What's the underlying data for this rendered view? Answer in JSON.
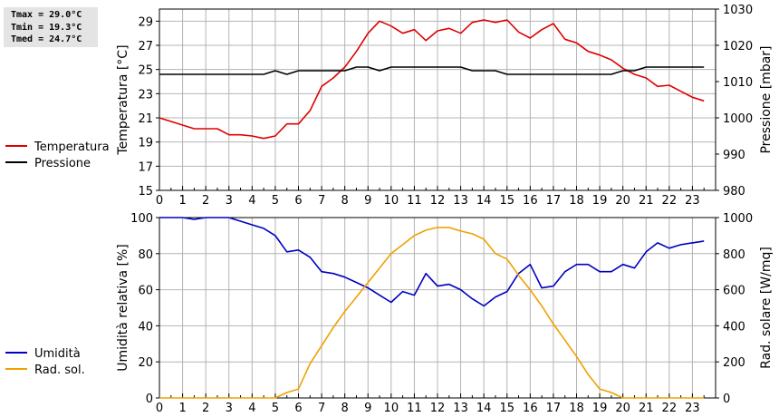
{
  "stats": {
    "tmax": "Tmax = 29.0°C",
    "tmin": "Tmin = 19.3°C",
    "tmed": "Tmed = 24.7°C"
  },
  "chart_data": [
    {
      "type": "line",
      "x": [
        0,
        0.5,
        1,
        1.5,
        2,
        2.5,
        3,
        3.5,
        4,
        4.5,
        5,
        5.5,
        6,
        6.5,
        7,
        7.5,
        8,
        8.5,
        9,
        9.5,
        10,
        10.5,
        11,
        11.5,
        12,
        12.5,
        13,
        13.5,
        14,
        14.5,
        15,
        15.5,
        16,
        16.5,
        17,
        17.5,
        18,
        18.5,
        19,
        19.5,
        20,
        20.5,
        21,
        21.5,
        22,
        22.5,
        23,
        23.5
      ],
      "xlim": [
        0,
        24
      ],
      "xticks": [
        "0",
        "1",
        "2",
        "3",
        "4",
        "5",
        "6",
        "7",
        "8",
        "9",
        "10",
        "11",
        "12",
        "13",
        "14",
        "15",
        "16",
        "17",
        "18",
        "19",
        "20",
        "21",
        "22",
        "23"
      ],
      "ylabel": "Temperatura [°C]",
      "ylim": [
        15,
        30
      ],
      "yticks": [
        "15",
        "17",
        "19",
        "21",
        "23",
        "25",
        "27",
        "29"
      ],
      "y2label": "Pressione [mbar]",
      "y2lim": [
        980,
        1030
      ],
      "y2ticks": [
        "980",
        "990",
        "1000",
        "1010",
        "1020",
        "1030"
      ],
      "grid": true,
      "legend_position": "left",
      "series": [
        {
          "name": "Temperatura",
          "axis": "left",
          "color": "#e00000",
          "values": [
            21.0,
            20.7,
            20.4,
            20.1,
            20.1,
            20.1,
            19.6,
            19.6,
            19.5,
            19.3,
            19.5,
            20.5,
            20.5,
            21.6,
            23.6,
            24.3,
            25.2,
            26.5,
            28.0,
            29.0,
            28.6,
            28.0,
            28.3,
            27.4,
            28.2,
            28.4,
            28.0,
            28.9,
            29.1,
            28.9,
            29.1,
            28.1,
            27.6,
            28.3,
            28.8,
            27.5,
            27.2,
            26.5,
            26.2,
            25.8,
            25.1,
            24.6,
            24.3,
            23.6,
            23.7,
            23.2,
            22.7,
            22.4
          ]
        },
        {
          "name": "Pressione",
          "axis": "right",
          "color": "#000000",
          "values": [
            1012,
            1012,
            1012,
            1012,
            1012,
            1012,
            1012,
            1012,
            1012,
            1012,
            1013,
            1012,
            1013,
            1013,
            1013,
            1013,
            1013,
            1014,
            1014,
            1013,
            1014,
            1014,
            1014,
            1014,
            1014,
            1014,
            1014,
            1013,
            1013,
            1013,
            1012,
            1012,
            1012,
            1012,
            1012,
            1012,
            1012,
            1012,
            1012,
            1012,
            1013,
            1013,
            1014,
            1014,
            1014,
            1014,
            1014,
            1014
          ]
        }
      ]
    },
    {
      "type": "line",
      "x": [
        0,
        0.5,
        1,
        1.5,
        2,
        2.5,
        3,
        3.5,
        4,
        4.5,
        5,
        5.5,
        6,
        6.5,
        7,
        7.5,
        8,
        8.5,
        9,
        9.5,
        10,
        10.5,
        11,
        11.5,
        12,
        12.5,
        13,
        13.5,
        14,
        14.5,
        15,
        15.5,
        16,
        16.5,
        17,
        17.5,
        18,
        18.5,
        19,
        19.5,
        20,
        20.5,
        21,
        21.5,
        22,
        22.5,
        23,
        23.5
      ],
      "xlim": [
        0,
        24
      ],
      "xticks": [
        "0",
        "1",
        "2",
        "3",
        "4",
        "5",
        "6",
        "7",
        "8",
        "9",
        "10",
        "11",
        "12",
        "13",
        "14",
        "15",
        "16",
        "17",
        "18",
        "19",
        "20",
        "21",
        "22",
        "23"
      ],
      "ylabel": "Umidità relativa [%]",
      "ylim": [
        0,
        100
      ],
      "yticks": [
        "0",
        "20",
        "40",
        "60",
        "80",
        "100"
      ],
      "y2label": "Rad. solare [W/mq]",
      "y2lim": [
        0,
        1000
      ],
      "y2ticks": [
        "0",
        "200",
        "400",
        "600",
        "800",
        "1000"
      ],
      "grid": true,
      "legend_position": "left",
      "series": [
        {
          "name": "Umidità",
          "axis": "left",
          "color": "#0000c0",
          "values": [
            100,
            100,
            100,
            99,
            100,
            100,
            100,
            98,
            96,
            94,
            90,
            81,
            82,
            78,
            70,
            69,
            67,
            64,
            61,
            57,
            53,
            59,
            57,
            69,
            62,
            63,
            60,
            55,
            51,
            56,
            59,
            69,
            74,
            61,
            62,
            70,
            74,
            74,
            70,
            70,
            74,
            72,
            81,
            86,
            83,
            85,
            86,
            87
          ]
        },
        {
          "name": "Rad. sol.",
          "axis": "right",
          "color": "#f0a000",
          "values": [
            0,
            0,
            0,
            0,
            0,
            0,
            0,
            0,
            0,
            0,
            0,
            30,
            50,
            190,
            290,
            390,
            480,
            560,
            640,
            720,
            800,
            850,
            900,
            930,
            945,
            945,
            925,
            910,
            880,
            800,
            770,
            680,
            600,
            510,
            410,
            320,
            230,
            130,
            50,
            30,
            0,
            0,
            0,
            0,
            0,
            0,
            0,
            0
          ]
        }
      ]
    }
  ]
}
